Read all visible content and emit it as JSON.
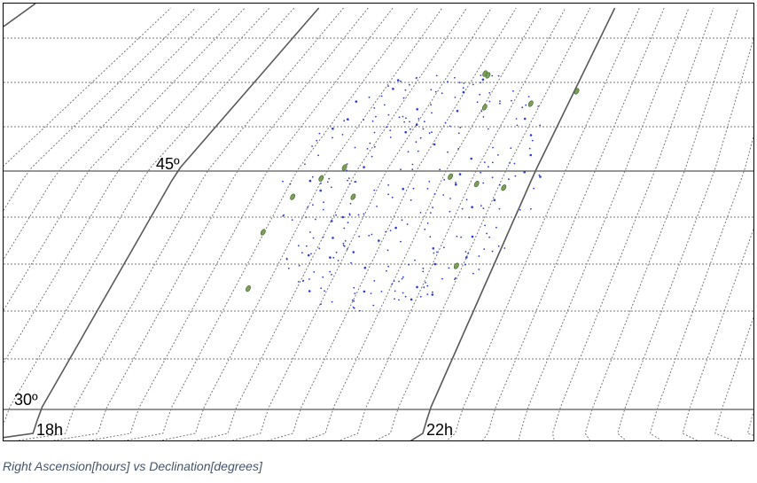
{
  "caption": "Right Ascension[hours] vs Declination[degrees]",
  "chart_data": {
    "type": "scatter",
    "title": "",
    "xlabel": "Right Ascension[hours]",
    "ylabel": "Declination[degrees]",
    "grid": true,
    "ra_labels": [
      {
        "ra": 18,
        "text": "18h"
      },
      {
        "ra": 22,
        "text": "22h"
      }
    ],
    "dec_labels": [
      {
        "dec": 30,
        "text": "30º"
      },
      {
        "dec": 45,
        "text": "45º"
      }
    ],
    "dec_range": [
      27.5,
      57
    ],
    "ra_range": [
      16.5,
      25
    ],
    "colors": {
      "major_grid": "#595959",
      "minor_grid": "#777777",
      "blue_points": "#2b3bd6",
      "green_points": "#7aa05a",
      "green_edge": "#3f5a2a"
    },
    "series": [
      {
        "marker": "blue-dot",
        "points": []
      },
      {
        "marker": "green-ellipse",
        "points": [
          {
            "ra": 20.78,
            "dec": 50.5
          },
          {
            "ra": 20.83,
            "dec": 50.4
          },
          {
            "ra": 21.02,
            "dec": 48.6
          },
          {
            "ra": 21.55,
            "dec": 48.8
          },
          {
            "ra": 22.03,
            "dec": 49.5
          },
          {
            "ra": 19.84,
            "dec": 45.2
          },
          {
            "ra": 19.65,
            "dec": 44.6
          },
          {
            "ra": 19.44,
            "dec": 43.6
          },
          {
            "ra": 20.11,
            "dec": 43.6
          },
          {
            "ra": 21.08,
            "dec": 44.7
          },
          {
            "ra": 21.41,
            "dec": 44.3
          },
          {
            "ra": 21.73,
            "dec": 44.1
          },
          {
            "ra": 19.32,
            "dec": 41.7
          },
          {
            "ra": 19.48,
            "dec": 38.7
          },
          {
            "ra": 21.6,
            "dec": 39.9
          }
        ]
      }
    ]
  }
}
